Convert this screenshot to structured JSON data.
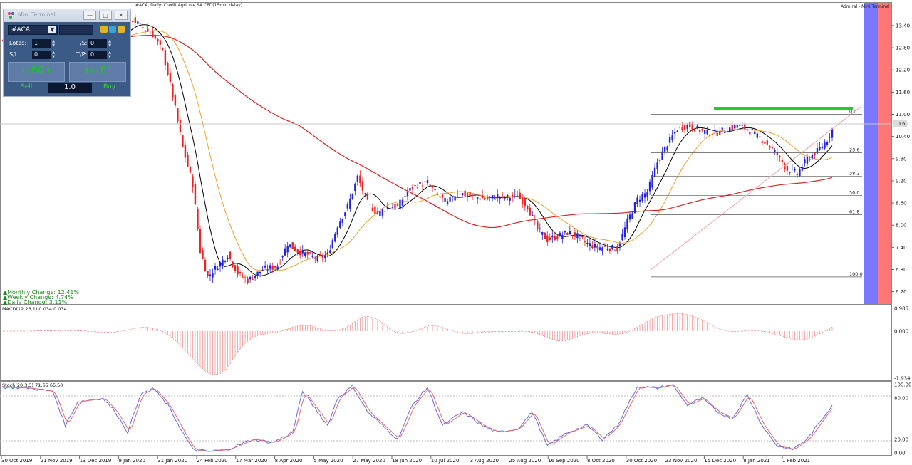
{
  "header": {
    "symbol_info": "#ACA, Daily: Credit Agricole SA CFD(15min delay)",
    "right_label": "Admiral - Mini Terminal"
  },
  "mini_terminal": {
    "title": "Mini Terminal",
    "symbol": "#ACA",
    "lots_label": "Lotes:",
    "lots_value": "1",
    "sl_label": "S/L:",
    "sl_value": "0",
    "ts_label": "T/S:",
    "ts_value": "0",
    "tp_label": "T/P:",
    "tp_value": "0",
    "sell_price_small": "10.",
    "sell_price_big": "60",
    "buy_price_small": "10.",
    "buy_price_big": "61",
    "sell_label": "Sell",
    "buy_label": "Buy",
    "volume": "1.0"
  },
  "changes": {
    "monthly": "Monthly Change: 12.41%",
    "weekly": "Weekly Change: 4.74%",
    "daily": "Daily Change: 3.11%"
  },
  "fib_labels": [
    "0.0",
    "23.6",
    "38.2",
    "50.0",
    "61.8",
    "100.0"
  ],
  "current_price_label": "10.60",
  "colors": {
    "bull": "#2222dd",
    "bear": "#ee2222",
    "sma_fast": "#000000",
    "sma_mid": "#f0a030",
    "sma_slow": "#dd2222",
    "resistance": "#22cc22",
    "trendline": "#f0a0a0",
    "panel_blue": "#7777ff",
    "panel_red": "#ff7777"
  },
  "chart_data": {
    "type": "candlestick",
    "price_axis": {
      "min": 6.0,
      "max": 13.9,
      "ticks": [
        "13.40",
        "12.80",
        "12.20",
        "11.60",
        "11.00",
        "10.40",
        "9.80",
        "9.20",
        "8.60",
        "8.00",
        "7.40",
        "6.80",
        "6.20"
      ]
    },
    "x_ticks": [
      "30 Oct 2019",
      "21 Nov 2019",
      "13 Dec 2019",
      "9 Jan 2020",
      "31 Jan 2020",
      "24 Feb 2020",
      "17 Mar 2020",
      "8 Apr 2020",
      "5 May 2020",
      "27 May 2020",
      "18 Jun 2020",
      "10 Jul 2020",
      "3 Aug 2020",
      "25 Aug 2020",
      "16 Sep 2020",
      "8 Oct 2020",
      "30 Oct 2020",
      "23 Nov 2020",
      "15 Dec 2020",
      "8 Jan 2021",
      "1 Feb 2021"
    ],
    "close_path": [
      [
        0,
        13.0
      ],
      [
        8,
        13.05
      ],
      [
        16,
        13.1
      ],
      [
        24,
        13.15
      ],
      [
        32,
        13.05
      ],
      [
        38,
        12.95
      ],
      [
        44,
        13.1
      ],
      [
        48,
        13.35
      ],
      [
        52,
        13.55
      ],
      [
        55,
        13.4
      ],
      [
        60,
        13.15
      ],
      [
        64,
        12.7
      ],
      [
        68,
        11.5
      ],
      [
        72,
        10.1
      ],
      [
        76,
        9.1
      ],
      [
        79,
        7.3
      ],
      [
        82,
        6.6
      ],
      [
        86,
        6.9
      ],
      [
        90,
        7.2
      ],
      [
        94,
        6.7
      ],
      [
        98,
        6.5
      ],
      [
        104,
        6.8
      ],
      [
        110,
        6.9
      ],
      [
        114,
        7.5
      ],
      [
        118,
        7.3
      ],
      [
        122,
        7.2
      ],
      [
        126,
        7.1
      ],
      [
        130,
        7.2
      ],
      [
        134,
        8.0
      ],
      [
        138,
        8.5
      ],
      [
        142,
        9.3
      ],
      [
        146,
        8.6
      ],
      [
        150,
        8.3
      ],
      [
        154,
        8.5
      ],
      [
        158,
        8.5
      ],
      [
        162,
        8.9
      ],
      [
        166,
        9.1
      ],
      [
        170,
        9.15
      ],
      [
        174,
        8.8
      ],
      [
        178,
        8.6
      ],
      [
        182,
        8.9
      ],
      [
        186,
        8.8
      ],
      [
        190,
        8.75
      ],
      [
        194,
        8.7
      ],
      [
        198,
        8.8
      ],
      [
        202,
        8.75
      ],
      [
        206,
        8.8
      ],
      [
        210,
        8.5
      ],
      [
        214,
        7.9
      ],
      [
        218,
        7.6
      ],
      [
        222,
        7.7
      ],
      [
        226,
        7.8
      ],
      [
        230,
        7.7
      ],
      [
        234,
        7.5
      ],
      [
        238,
        7.4
      ],
      [
        242,
        7.4
      ],
      [
        246,
        7.35
      ],
      [
        250,
        8.1
      ],
      [
        254,
        8.7
      ],
      [
        258,
        8.9
      ],
      [
        262,
        9.7
      ],
      [
        266,
        10.2
      ],
      [
        270,
        10.6
      ],
      [
        274,
        10.7
      ],
      [
        278,
        10.6
      ],
      [
        282,
        10.5
      ],
      [
        286,
        10.5
      ],
      [
        290,
        10.6
      ],
      [
        294,
        10.7
      ],
      [
        298,
        10.6
      ],
      [
        302,
        10.4
      ],
      [
        306,
        10.2
      ],
      [
        310,
        9.9
      ],
      [
        314,
        9.5
      ],
      [
        318,
        9.4
      ],
      [
        322,
        9.8
      ],
      [
        326,
        10.0
      ],
      [
        330,
        10.3
      ],
      [
        332,
        10.6
      ]
    ],
    "stoch_path": [
      [
        0,
        96
      ],
      [
        10,
        95
      ],
      [
        20,
        90
      ],
      [
        25,
        40
      ],
      [
        30,
        75
      ],
      [
        40,
        80
      ],
      [
        45,
        60
      ],
      [
        50,
        30
      ],
      [
        55,
        85
      ],
      [
        60,
        95
      ],
      [
        66,
        70
      ],
      [
        72,
        30
      ],
      [
        76,
        5
      ],
      [
        82,
        2
      ],
      [
        90,
        5
      ],
      [
        100,
        20
      ],
      [
        108,
        15
      ],
      [
        116,
        30
      ],
      [
        120,
        90
      ],
      [
        124,
        70
      ],
      [
        130,
        40
      ],
      [
        134,
        80
      ],
      [
        140,
        98
      ],
      [
        146,
        60
      ],
      [
        152,
        40
      ],
      [
        158,
        20
      ],
      [
        164,
        70
      ],
      [
        170,
        96
      ],
      [
        176,
        40
      ],
      [
        184,
        60
      ],
      [
        192,
        40
      ],
      [
        198,
        30
      ],
      [
        206,
        35
      ],
      [
        212,
        60
      ],
      [
        218,
        10
      ],
      [
        226,
        30
      ],
      [
        234,
        40
      ],
      [
        240,
        20
      ],
      [
        246,
        40
      ],
      [
        254,
        97
      ],
      [
        262,
        95
      ],
      [
        268,
        100
      ],
      [
        274,
        70
      ],
      [
        280,
        80
      ],
      [
        286,
        60
      ],
      [
        292,
        50
      ],
      [
        298,
        85
      ],
      [
        304,
        40
      ],
      [
        310,
        10
      ],
      [
        316,
        5
      ],
      [
        322,
        20
      ],
      [
        328,
        50
      ],
      [
        332,
        70
      ]
    ],
    "macd_label": "MACD(12,26,1) 0.034 0.034",
    "macd_ticks": [
      "0.985",
      "0.000",
      "-1.934"
    ],
    "stoch_label": "Stoch(20,3,3) 71.65 65.50",
    "stoch_ticks": [
      "100.00",
      "80.00",
      "20.00",
      "0.00"
    ],
    "fib_levels": {
      "high": 11.0,
      "low": 6.6,
      "levels": [
        0.0,
        23.6,
        38.2,
        50.0,
        61.8,
        100.0
      ]
    },
    "resistance_level": 11.0,
    "last_price": 10.6,
    "legend_position": "none",
    "grid": false
  }
}
